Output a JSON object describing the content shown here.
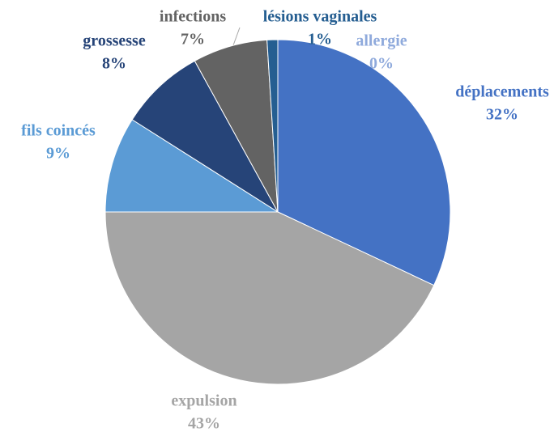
{
  "chart_data": {
    "type": "pie",
    "categories": [
      "déplacements",
      "expulsion",
      "fils coincés",
      "grossesse",
      "infections",
      "lésions vaginales",
      "allergie"
    ],
    "values": [
      32,
      43,
      9,
      8,
      7,
      1,
      0
    ],
    "value_labels": [
      "32%",
      "43%",
      "9%",
      "8%",
      "7%",
      "1%",
      "0%"
    ],
    "colors": [
      "#4472c4",
      "#a5a5a5",
      "#5b9bd5",
      "#264478",
      "#636363",
      "#255e91",
      "#8faadc"
    ]
  }
}
